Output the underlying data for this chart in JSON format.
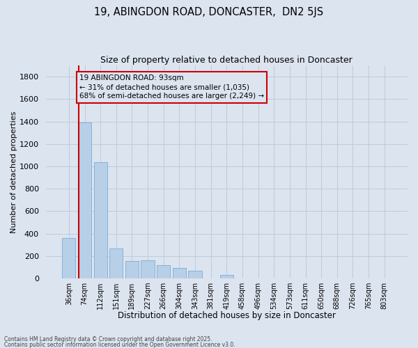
{
  "title1": "19, ABINGDON ROAD, DONCASTER,  DN2 5JS",
  "title2": "Size of property relative to detached houses in Doncaster",
  "xlabel": "Distribution of detached houses by size in Doncaster",
  "ylabel": "Number of detached properties",
  "categories": [
    "36sqm",
    "74sqm",
    "112sqm",
    "151sqm",
    "189sqm",
    "227sqm",
    "266sqm",
    "304sqm",
    "343sqm",
    "381sqm",
    "419sqm",
    "458sqm",
    "496sqm",
    "534sqm",
    "573sqm",
    "611sqm",
    "650sqm",
    "688sqm",
    "726sqm",
    "765sqm",
    "803sqm"
  ],
  "values": [
    360,
    1390,
    1035,
    268,
    155,
    158,
    118,
    90,
    68,
    0,
    28,
    0,
    0,
    0,
    0,
    0,
    0,
    0,
    0,
    0,
    0
  ],
  "bar_color": "#b8cfe8",
  "bar_edge_color": "#7aadd4",
  "grid_color": "#c0cad8",
  "bg_color": "#dce4f0",
  "vline_color": "#cc0000",
  "vline_x": 0.62,
  "annotation_text": "19 ABINGDON ROAD: 93sqm\n← 31% of detached houses are smaller (1,035)\n68% of semi-detached houses are larger (2,249) →",
  "annotation_box_edgecolor": "#cc0000",
  "footer1": "Contains HM Land Registry data © Crown copyright and database right 2025.",
  "footer2": "Contains public sector information licensed under the Open Government Licence v3.0.",
  "ylim_max": 1900,
  "ytick_step": 200
}
